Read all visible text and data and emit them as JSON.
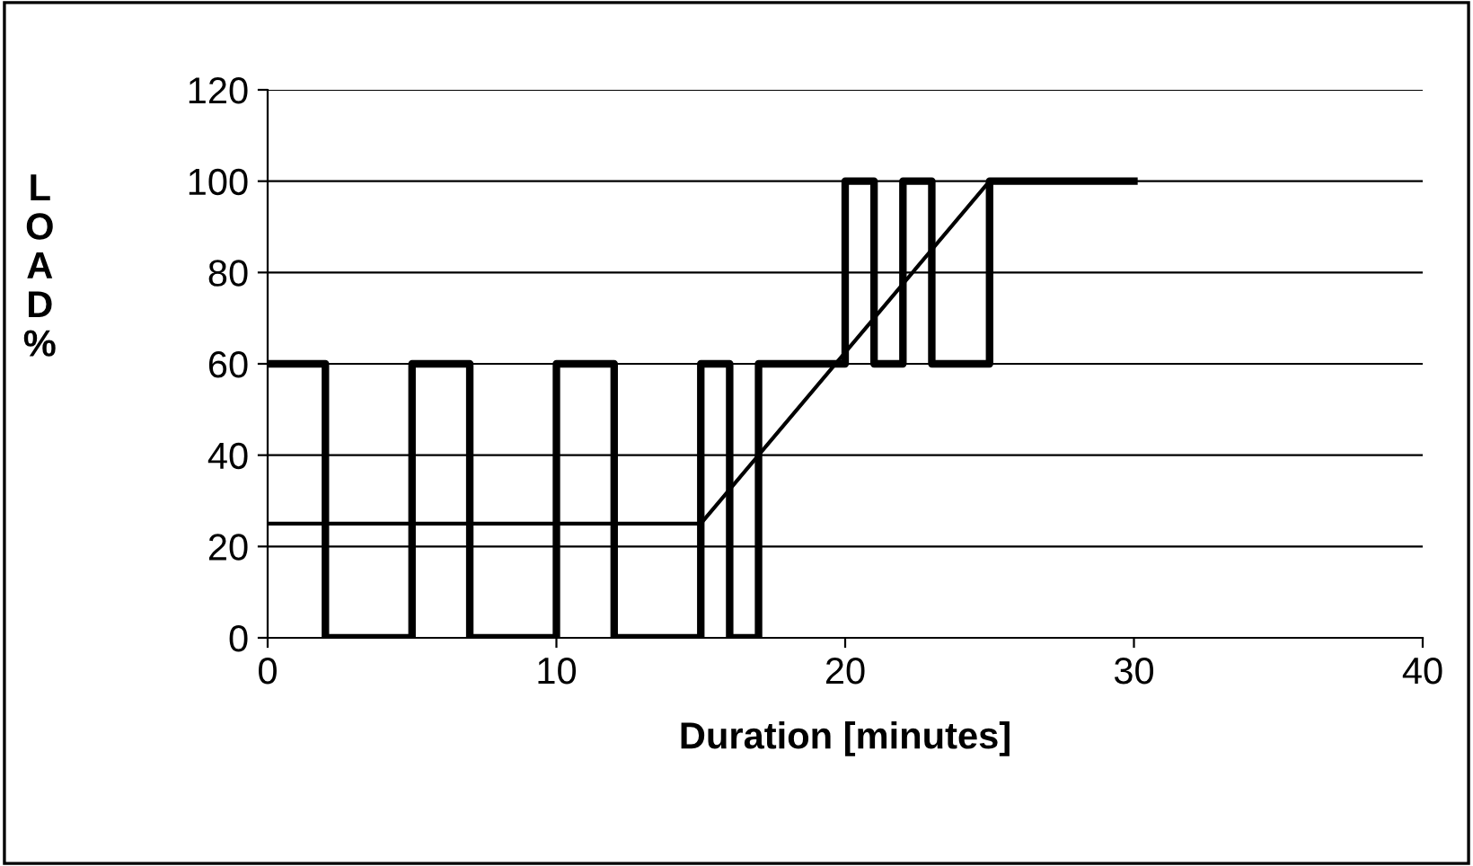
{
  "chart_data": {
    "type": "step",
    "xlabel": "Duration [minutes]",
    "ylabel": "LOAD%",
    "xlim": [
      0,
      40
    ],
    "xticks": [
      0,
      10,
      20,
      30,
      40
    ],
    "ylim": [
      0,
      120
    ],
    "yticks": [
      0,
      20,
      40,
      60,
      80,
      100,
      120
    ],
    "grid": "y",
    "legend": false,
    "series": [
      {
        "color": "#000000",
        "x": [
          0,
          2,
          5,
          7,
          10,
          12,
          15,
          16,
          17,
          20,
          21,
          22,
          23,
          25,
          30
        ],
        "values": [
          60,
          0,
          60,
          0,
          60,
          0,
          60,
          0,
          60,
          100,
          60,
          100,
          60,
          100,
          100
        ]
      },
      {
        "type": "line",
        "color": "#000000",
        "x": [
          0,
          15,
          25,
          30
        ],
        "values": [
          25,
          25,
          100,
          100
        ]
      }
    ]
  }
}
